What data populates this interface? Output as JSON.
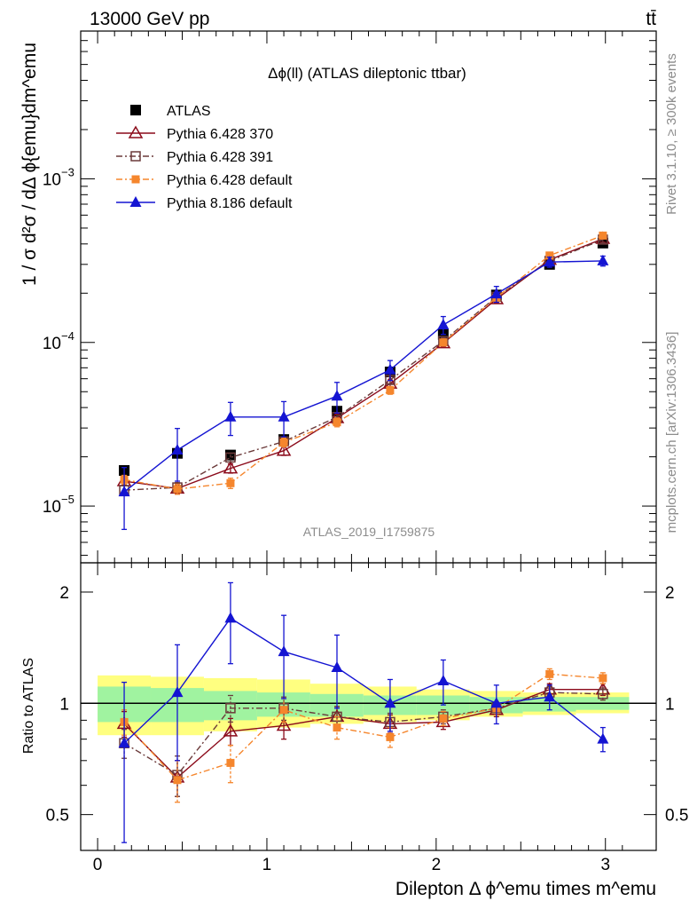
{
  "header": {
    "energy_label": "13000 GeV pp",
    "process_label": "tt̄"
  },
  "side": {
    "rivet_label": "Rivet 3.1.10, ≥ 300k events",
    "source_label": "mcplots.cern.ch [arXiv:1306.3436]"
  },
  "watermark": "ATLAS_2019_I1759875",
  "chart_data": [
    {
      "type": "line",
      "title": "Δϕ(ll) (ATLAS dileptonic ttbar)",
      "ylabel": "1 / σ  d²σ / dΔ ϕ{emu}dm^emu",
      "xlabel": "Dilepton Δ ϕ^emu times m^emu",
      "yscale": "log",
      "ylim": [
        4.5e-06,
        0.008
      ],
      "xlim": [
        -0.1,
        3.3
      ],
      "x": [
        0.157,
        0.471,
        0.785,
        1.1,
        1.414,
        1.728,
        2.042,
        2.356,
        2.67,
        2.985
      ],
      "y_ticks": [
        {
          "v": 1e-05,
          "base": "10",
          "exp": "−5"
        },
        {
          "v": 0.0001,
          "base": "10",
          "exp": "−4"
        },
        {
          "v": 0.001,
          "base": "10",
          "exp": "−3"
        }
      ],
      "series": [
        {
          "name": "ATLAS",
          "color": "#000000",
          "marker": "square-filled",
          "line": "none",
          "values": [
            1.65e-05,
            2.1e-05,
            2.05e-05,
            2.55e-05,
            3.8e-05,
            6.6e-05,
            0.000112,
            0.000195,
            0.0003,
            0.000405
          ]
        },
        {
          "name": "Pythia 6.428 370",
          "color": "#8b0a1a",
          "marker": "triangle-open",
          "line": "solid",
          "values": [
            1.42e-05,
            1.28e-05,
            1.7e-05,
            2.18e-05,
            3.45e-05,
            5.6e-05,
            9.9e-05,
            0.000184,
            0.00032,
            0.00043
          ],
          "errors": [
            9e-07,
            9e-07,
            1.1e-06,
            1.4e-06,
            2e-06,
            3e-06,
            5e-06,
            9e-06,
            1.5e-05,
            2e-05
          ]
        },
        {
          "name": "Pythia 6.428 391",
          "color": "#6b3a3a",
          "marker": "square-open",
          "line": "dashdot",
          "values": [
            1.25e-05,
            1.3e-05,
            1.98e-05,
            2.48e-05,
            3.5e-05,
            5.9e-05,
            0.000102,
            0.00019,
            0.000315,
            0.000425
          ],
          "errors": [
            9e-07,
            9e-07,
            1.2e-06,
            1.5e-06,
            2e-06,
            3e-06,
            5e-06,
            9e-06,
            1.5e-05,
            2e-05
          ]
        },
        {
          "name": "Pythia 6.428 default",
          "color": "#f5862d",
          "marker": "square-filled-small",
          "line": "dashdot",
          "values": [
            1.45e-05,
            1.27e-05,
            1.38e-05,
            2.45e-05,
            3.25e-05,
            5.1e-05,
            0.0001,
            0.000188,
            0.00034,
            0.00045
          ],
          "errors": [
            9e-07,
            9e-07,
            1e-06,
            1.5e-06,
            2e-06,
            2.8e-06,
            5e-06,
            9e-06,
            1.6e-05,
            2e-05
          ]
        },
        {
          "name": "Pythia 8.186 default",
          "color": "#1414d2",
          "marker": "triangle-filled",
          "line": "solid",
          "values": [
            1.22e-05,
            2.2e-05,
            3.5e-05,
            3.5e-05,
            4.7e-05,
            6.8e-05,
            0.000128,
            0.000198,
            0.00031,
            0.000315
          ],
          "errors": [
            5e-06,
            7.8e-06,
            8e-06,
            8.5e-06,
            1e-05,
            9.5e-06,
            1.6e-05,
            2.2e-05,
            2.2e-05,
            2.2e-05
          ]
        }
      ]
    },
    {
      "type": "line",
      "title": "",
      "ylabel": "Ratio to ATLAS",
      "xlabel": "Dilepton Δ ϕ^emu times m^emu",
      "ylim": [
        0.4,
        2.4
      ],
      "xlim": [
        -0.1,
        3.3
      ],
      "x": [
        0.157,
        0.471,
        0.785,
        1.1,
        1.414,
        1.728,
        2.042,
        2.356,
        2.67,
        2.985
      ],
      "y_ticks": [
        "0.5",
        "1",
        "2"
      ],
      "y_tick_values": [
        0.5,
        1,
        2
      ],
      "x_ticks": [
        "0",
        "1",
        "2",
        "3"
      ],
      "x_tick_values": [
        0,
        1,
        2,
        3
      ],
      "reference": 1,
      "bands": {
        "edges": [
          0,
          0.314,
          0.628,
          0.942,
          1.256,
          1.57,
          1.884,
          2.198,
          2.512,
          2.826,
          3.14
        ],
        "stat_lo": [
          0.89,
          0.89,
          0.9,
          0.92,
          0.92,
          0.93,
          0.93,
          0.94,
          0.95,
          0.96
        ],
        "stat_hi": [
          1.11,
          1.1,
          1.08,
          1.07,
          1.06,
          1.05,
          1.05,
          1.04,
          1.04,
          1.04
        ],
        "syst_lo": [
          0.82,
          0.82,
          0.84,
          0.86,
          0.88,
          0.89,
          0.9,
          0.92,
          0.93,
          0.94
        ],
        "syst_hi": [
          1.19,
          1.18,
          1.17,
          1.16,
          1.13,
          1.11,
          1.09,
          1.08,
          1.07,
          1.07
        ]
      },
      "series": [
        {
          "name": "Pythia 6.428 370",
          "color": "#8b0a1a",
          "marker": "triangle-open",
          "line": "solid",
          "values": [
            0.88,
            0.63,
            0.84,
            0.87,
            0.92,
            0.88,
            0.89,
            0.96,
            1.09,
            1.09
          ],
          "errors": [
            0.07,
            0.07,
            0.07,
            0.07,
            0.06,
            0.05,
            0.04,
            0.04,
            0.04,
            0.04
          ]
        },
        {
          "name": "Pythia 6.428 391",
          "color": "#6b3a3a",
          "marker": "square-open",
          "line": "dashdot",
          "values": [
            0.78,
            0.64,
            0.97,
            0.97,
            0.92,
            0.89,
            0.92,
            0.97,
            1.07,
            1.06
          ],
          "errors": [
            0.07,
            0.08,
            0.08,
            0.07,
            0.06,
            0.05,
            0.04,
            0.04,
            0.04,
            0.04
          ]
        },
        {
          "name": "Pythia 6.428 default",
          "color": "#f5862d",
          "marker": "square-filled-small",
          "line": "dashdot",
          "values": [
            0.89,
            0.62,
            0.69,
            0.96,
            0.86,
            0.81,
            0.91,
            0.97,
            1.2,
            1.17
          ],
          "errors": [
            0.07,
            0.08,
            0.08,
            0.07,
            0.06,
            0.05,
            0.04,
            0.04,
            0.04,
            0.04
          ]
        },
        {
          "name": "Pythia 8.186 default",
          "color": "#1414d2",
          "marker": "triangle-filled",
          "line": "solid",
          "values": [
            0.78,
            1.07,
            1.7,
            1.38,
            1.25,
            1.0,
            1.15,
            1.0,
            1.04,
            0.8
          ],
          "errors": [
            0.36,
            0.37,
            0.42,
            0.35,
            0.28,
            0.16,
            0.16,
            0.12,
            0.08,
            0.06
          ]
        }
      ]
    }
  ]
}
